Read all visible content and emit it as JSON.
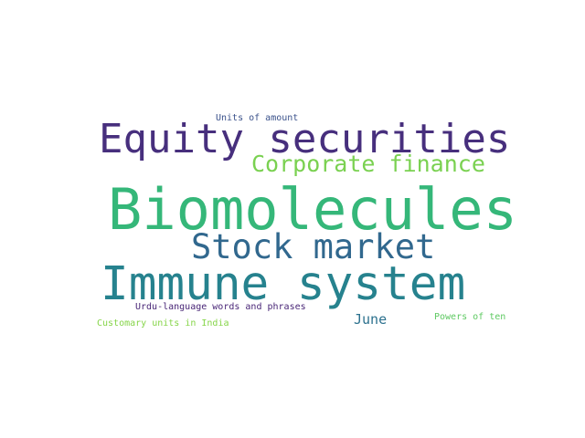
{
  "word_cloud": {
    "words": [
      {
        "id": "units-amount",
        "text": "Units of amount",
        "color": "#3b528b"
      },
      {
        "id": "equity",
        "text": "Equity securities",
        "color": "#472f7d"
      },
      {
        "id": "corp-finance",
        "text": "Corporate finance",
        "color": "#7ad151"
      },
      {
        "id": "biomolecules",
        "text": "Biomolecules",
        "color": "#35b779"
      },
      {
        "id": "stock-market",
        "text": "Stock market",
        "color": "#31688e"
      },
      {
        "id": "immune",
        "text": "Immune system",
        "color": "#26828e"
      },
      {
        "id": "urdu",
        "text": "Urdu-language words and phrases",
        "color": "#482576"
      },
      {
        "id": "june",
        "text": "June",
        "color": "#2c718e"
      },
      {
        "id": "powers",
        "text": "Powers of ten",
        "color": "#5ec962"
      },
      {
        "id": "customary",
        "text": "Customary units in India",
        "color": "#86d549"
      }
    ]
  }
}
